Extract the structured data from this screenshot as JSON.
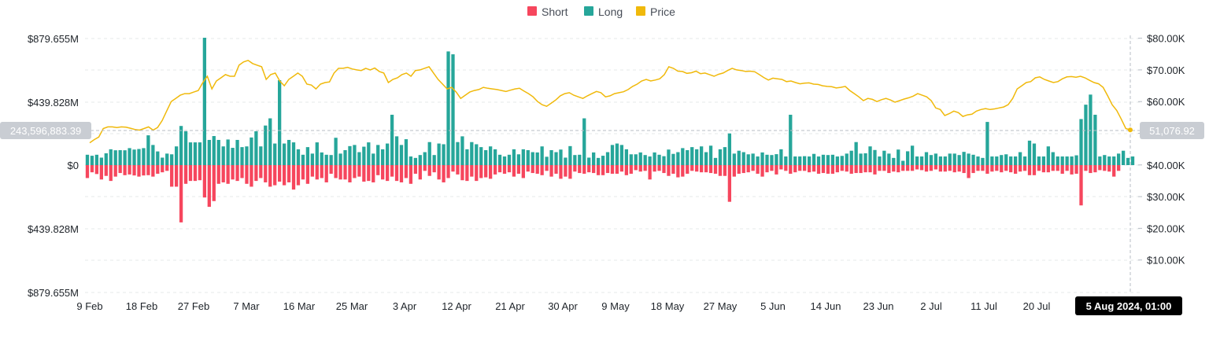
{
  "colors": {
    "short": "#f6465d",
    "long": "#2ebd85",
    "long_bar": "#26a69a",
    "price": "#f0b90b",
    "pill_bg": "#c9cdd3",
    "tooltip_bg": "#000000"
  },
  "legend": [
    {
      "label": "Short",
      "color": "#f6465d"
    },
    {
      "label": "Long",
      "color": "#26a69a"
    },
    {
      "label": "Price",
      "color": "#f0b90b"
    }
  ],
  "left_axis_labels": [
    "$879.655M",
    "$439.828M",
    "$0",
    "$439.828M",
    "$879.655M"
  ],
  "right_axis_labels": [
    "$80.00K",
    "$70.00K",
    "$60.00K",
    "$50.00K",
    "$40.00K",
    "$30.00K",
    "$20.00K",
    "$10.00K"
  ],
  "x_axis_labels": [
    "9 Feb",
    "18 Feb",
    "27 Feb",
    "7 Mar",
    "16 Mar",
    "25 Mar",
    "3 Apr",
    "12 Apr",
    "21 Apr",
    "30 Apr",
    "9 May",
    "18 May",
    "27 May",
    "5 Jun",
    "14 Jun",
    "23 Jun",
    "2 Jul",
    "11 Jul",
    "20 Jul"
  ],
  "crosshair": {
    "left_value": "243,596,883.39",
    "right_value": "51,076.92",
    "date_label": "5 Aug 2024, 01:00"
  },
  "chart_data": {
    "type": "bar",
    "x_start": "9 Feb 2024",
    "x_end": "5 Aug 2024",
    "series": [
      {
        "name": "Long",
        "unit": "USD",
        "values": [
          72,
          65,
          72,
          52,
          82,
          110,
          103,
          104,
          103,
          118,
          108,
          112,
          118,
          207,
          140,
          95,
          52,
          80,
          75,
          130,
          272,
          235,
          158,
          158,
          158,
          885,
          175,
          202,
          175,
          130,
          178,
          120,
          175,
          125,
          130,
          192,
          235,
          130,
          275,
          325,
          150,
          590,
          150,
          175,
          158,
          110,
          72,
          125,
          80,
          158,
          88,
          72,
          70,
          190,
          80,
          104,
          132,
          140,
          90,
          128,
          158,
          80,
          140,
          110,
          150,
          350,
          200,
          140,
          180,
          60,
          50,
          70,
          90,
          160,
          70,
          150,
          145,
          790,
          770,
          160,
          200,
          110,
          160,
          145,
          125,
          104,
          130,
          110,
          72,
          60,
          72,
          110,
          75,
          110,
          104,
          90,
          88,
          130,
          58,
          104,
          90,
          108,
          52,
          132,
          70,
          72,
          325,
          52,
          88,
          50,
          65,
          90,
          140,
          150,
          140,
          110,
          75,
          75,
          88,
          70,
          60,
          88,
          72,
          62,
          108,
          78,
          90,
          118,
          104,
          125,
          110,
          130,
          90,
          135,
          50,
          110,
          125,
          220,
          80,
          100,
          90,
          75,
          80,
          60,
          88,
          72,
          70,
          76,
          110,
          60,
          350,
          60,
          60,
          62,
          60,
          78,
          60,
          72,
          70,
          72,
          60,
          64,
          80,
          100,
          160,
          80,
          82,
          130,
          105,
          60,
          100,
          80,
          50,
          108,
          30,
          96,
          135,
          60,
          60,
          90,
          70,
          80,
          60,
          60,
          80,
          80,
          70,
          92,
          80,
          72,
          60,
          50,
          300,
          60,
          60,
          70,
          75,
          60,
          60,
          90,
          60,
          170,
          150,
          60,
          60,
          130,
          90,
          60,
          60,
          60,
          60,
          68,
          320,
          420,
          490,
          350,
          60,
          70,
          60,
          60,
          80,
          100,
          50,
          60
        ],
        "values_note": "approx M USD"
      },
      {
        "name": "Short",
        "unit": "USD",
        "values": [
          90,
          50,
          62,
          100,
          75,
          110,
          80,
          55,
          70,
          65,
          72,
          80,
          72,
          70,
          80,
          60,
          50,
          40,
          150,
          150,
          398,
          130,
          110,
          110,
          105,
          225,
          290,
          250,
          130,
          120,
          130,
          100,
          110,
          90,
          130,
          150,
          110,
          90,
          120,
          150,
          140,
          115,
          140,
          120,
          170,
          140,
          100,
          130,
          80,
          100,
          90,
          120,
          60,
          90,
          100,
          100,
          120,
          90,
          80,
          115,
          110,
          120,
          70,
          100,
          110,
          80,
          110,
          120,
          90,
          130,
          60,
          100,
          40,
          75,
          50,
          100,
          120,
          90,
          45,
          65,
          105,
          110,
          80,
          110,
          90,
          85,
          95,
          65,
          50,
          60,
          50,
          80,
          60,
          90,
          45,
          55,
          60,
          70,
          40,
          80,
          60,
          95,
          80,
          95,
          45,
          55,
          60,
          50,
          55,
          70,
          70,
          55,
          60,
          60,
          45,
          70,
          60,
          35,
          45,
          40,
          100,
          45,
          40,
          55,
          75,
          60,
          85,
          80,
          60,
          40,
          45,
          50,
          50,
          55,
          60,
          75,
          75,
          255,
          80,
          60,
          55,
          50,
          40,
          60,
          80,
          50,
          40,
          65,
          30,
          40,
          60,
          50,
          40,
          40,
          50,
          45,
          60,
          55,
          60,
          60,
          50,
          40,
          45,
          60,
          55,
          55,
          50,
          50,
          65,
          40,
          40,
          55,
          45,
          50,
          40,
          40,
          40,
          30,
          35,
          45,
          40,
          30,
          45,
          45,
          40,
          50,
          45,
          55,
          90,
          55,
          40,
          40,
          60,
          45,
          40,
          50,
          40,
          50,
          60,
          45,
          40,
          70,
          70,
          40,
          50,
          50,
          40,
          40,
          60,
          40,
          65,
          60,
          280,
          40,
          55,
          50,
          35,
          40,
          45,
          80,
          40
        ],
        "values_note": "approx M USD, plotted downward"
      },
      {
        "name": "Price",
        "unit": "USD",
        "values": [
          47000,
          48000,
          48800,
          51500,
          52000,
          52000,
          51800,
          52000,
          51900,
          51600,
          51200,
          51000,
          51500,
          52000,
          51000,
          51800,
          54000,
          57000,
          60000,
          61000,
          62000,
          62500,
          62500,
          63000,
          63500,
          66000,
          68000,
          64000,
          66500,
          67500,
          68500,
          68000,
          68000,
          71500,
          72500,
          73000,
          72000,
          71500,
          71000,
          67000,
          68500,
          69000,
          66500,
          65000,
          67000,
          68000,
          69000,
          68000,
          65500,
          65200,
          64000,
          65500,
          66000,
          66200,
          69000,
          70500,
          70500,
          70800,
          70300,
          70000,
          69800,
          70500,
          70000,
          70600,
          69500,
          69000,
          66000,
          67000,
          67500,
          68500,
          69000,
          68000,
          69800,
          70000,
          70500,
          71000,
          69000,
          67000,
          65500,
          64000,
          64500,
          63000,
          61000,
          62000,
          63000,
          63500,
          63800,
          64500,
          64200,
          64000,
          63800,
          63500,
          63200,
          63600,
          64000,
          64200,
          63300,
          62500,
          61500,
          60000,
          59000,
          58500,
          59500,
          60500,
          61800,
          62500,
          62800,
          62000,
          61500,
          61000,
          61800,
          62500,
          63200,
          62800,
          61500,
          61800,
          62500,
          62800,
          63100,
          63800,
          64800,
          65500,
          66500,
          67000,
          66500,
          66800,
          67200,
          68500,
          71000,
          70500,
          69600,
          69500,
          68900,
          69100,
          69600,
          68800,
          69000,
          68500,
          68000,
          68600,
          69000,
          69800,
          70500,
          70000,
          69800,
          69500,
          69600,
          69400,
          68500,
          67600,
          66800,
          67400,
          67200,
          67000,
          66300,
          66500,
          66000,
          65600,
          65800,
          65900,
          65500,
          65400,
          65000,
          64800,
          64700,
          64300,
          64500,
          64800,
          63500,
          62500,
          61500,
          60300,
          61000,
          60700,
          60000,
          60600,
          61000,
          60500,
          59800,
          60300,
          60800,
          61200,
          61700,
          62500,
          62000,
          61500,
          60300,
          58000,
          57500,
          55600,
          56200,
          57000,
          56500,
          55300,
          55800,
          56000,
          57000,
          57500,
          57800,
          57500,
          57700,
          58000,
          58300,
          59000,
          61000,
          64000,
          65000,
          66000,
          66300,
          67500,
          67800,
          67000,
          66500,
          66000,
          66300,
          67200,
          67800,
          67900,
          67700,
          68000,
          67500,
          66700,
          66000,
          65600,
          64500,
          61800,
          59000,
          57200,
          54500,
          51500,
          51076.92
        ]
      }
    ],
    "left_axis": {
      "min": -879655000,
      "max": 879655000,
      "ticks": [
        "$879.655M",
        "$439.828M",
        "$0",
        "$439.828M",
        "$879.655M"
      ]
    },
    "right_axis": {
      "min": 0,
      "max": 80000,
      "ticks": [
        "$80.00K",
        "$70.00K",
        "$60.00K",
        "$50.00K",
        "$40.00K",
        "$30.00K",
        "$20.00K",
        "$10.00K"
      ]
    },
    "x_ticks": [
      "9 Feb",
      "18 Feb",
      "27 Feb",
      "7 Mar",
      "16 Mar",
      "25 Mar",
      "3 Apr",
      "12 Apr",
      "21 Apr",
      "30 Apr",
      "9 May",
      "18 May",
      "27 May",
      "5 Jun",
      "14 Jun",
      "23 Jun",
      "2 Jul",
      "11 Jul",
      "20 Jul"
    ],
    "grid": true,
    "legend_position": "top-center"
  }
}
